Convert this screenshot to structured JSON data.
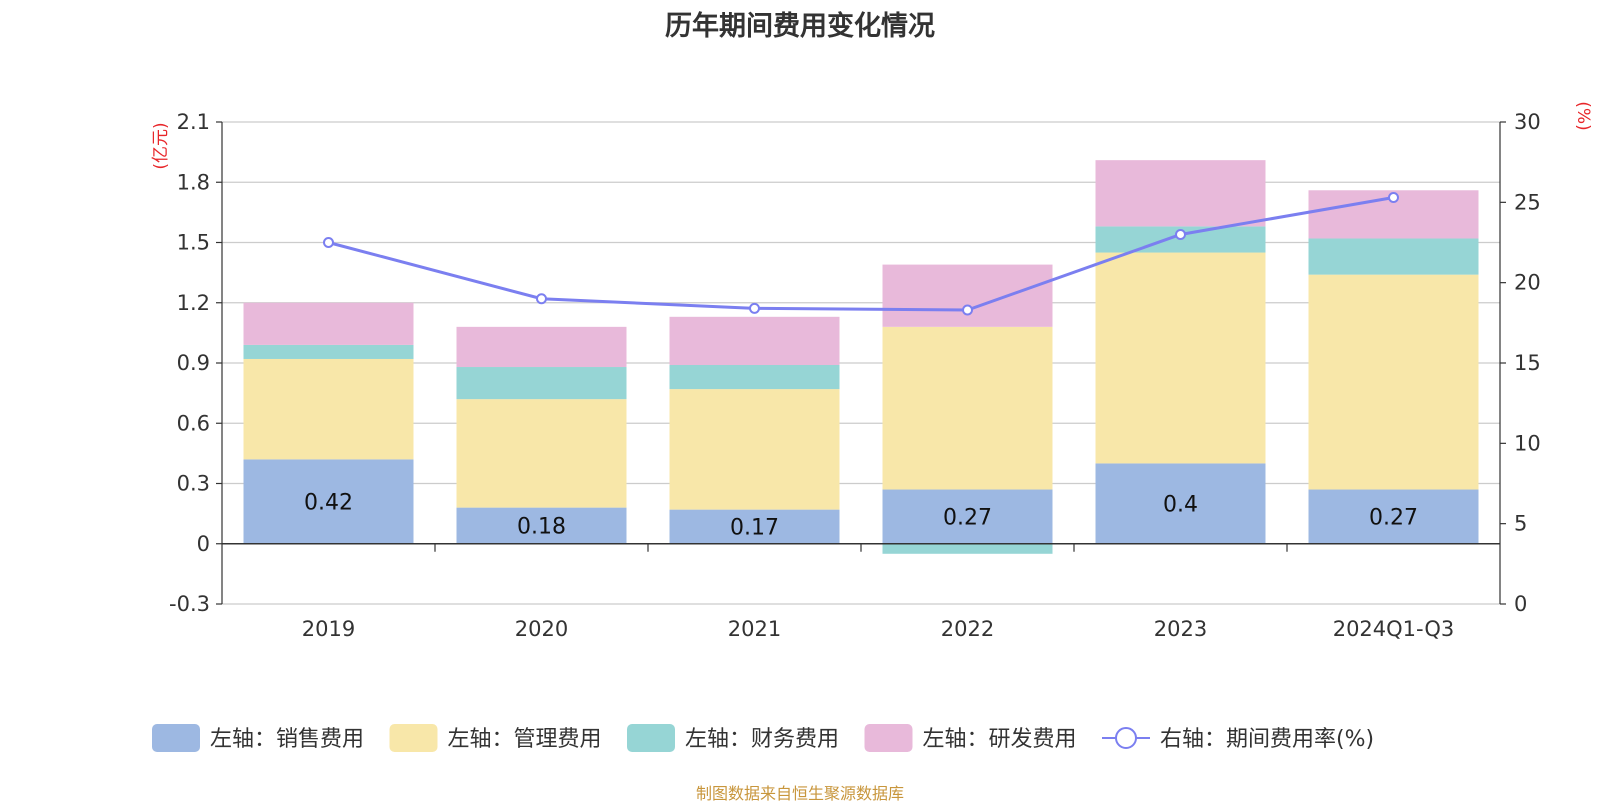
{
  "chart_data": {
    "type": "bar",
    "title": "历年期间费用变化情况",
    "categories": [
      "2019",
      "2020",
      "2021",
      "2022",
      "2023",
      "2024Q1-Q3"
    ],
    "y_left": {
      "unit_label": "(亿元)",
      "ticks": [
        "-0.3",
        "0",
        "0.3",
        "0.6",
        "0.9",
        "1.2",
        "1.5",
        "1.8",
        "2.1"
      ],
      "range": [
        -0.3,
        2.1
      ]
    },
    "y_right": {
      "unit_label": "(%)",
      "ticks": [
        "0",
        "5",
        "10",
        "15",
        "20",
        "25",
        "30"
      ],
      "range": [
        0,
        30
      ]
    },
    "stacked": true,
    "series": [
      {
        "name": "左轴：销售费用",
        "color": "#9db8e2",
        "values": [
          0.42,
          0.18,
          0.17,
          0.27,
          0.4,
          0.27
        ],
        "labels": [
          "0.42",
          "0.18",
          "0.17",
          "0.27",
          "0.4",
          "0.27"
        ]
      },
      {
        "name": "左轴：管理费用",
        "color": "#f8e7a9",
        "values": [
          0.5,
          0.54,
          0.6,
          0.81,
          1.05,
          1.07
        ]
      },
      {
        "name": "左轴：财务费用",
        "color": "#96d5d5",
        "values": [
          0.07,
          0.16,
          0.12,
          -0.05,
          0.13,
          0.18
        ]
      },
      {
        "name": "左轴：研发费用",
        "color": "#e8b9da",
        "values": [
          0.21,
          0.2,
          0.24,
          0.31,
          0.33,
          0.24
        ]
      }
    ],
    "line_series": {
      "name": "右轴：期间费用率(%)",
      "color": "#7b7ff0",
      "values": [
        22.5,
        19.0,
        18.4,
        18.3,
        23.0,
        25.3
      ]
    },
    "grid": true,
    "legend_position": "bottom"
  },
  "source_note": "制图数据来自恒生聚源数据库"
}
